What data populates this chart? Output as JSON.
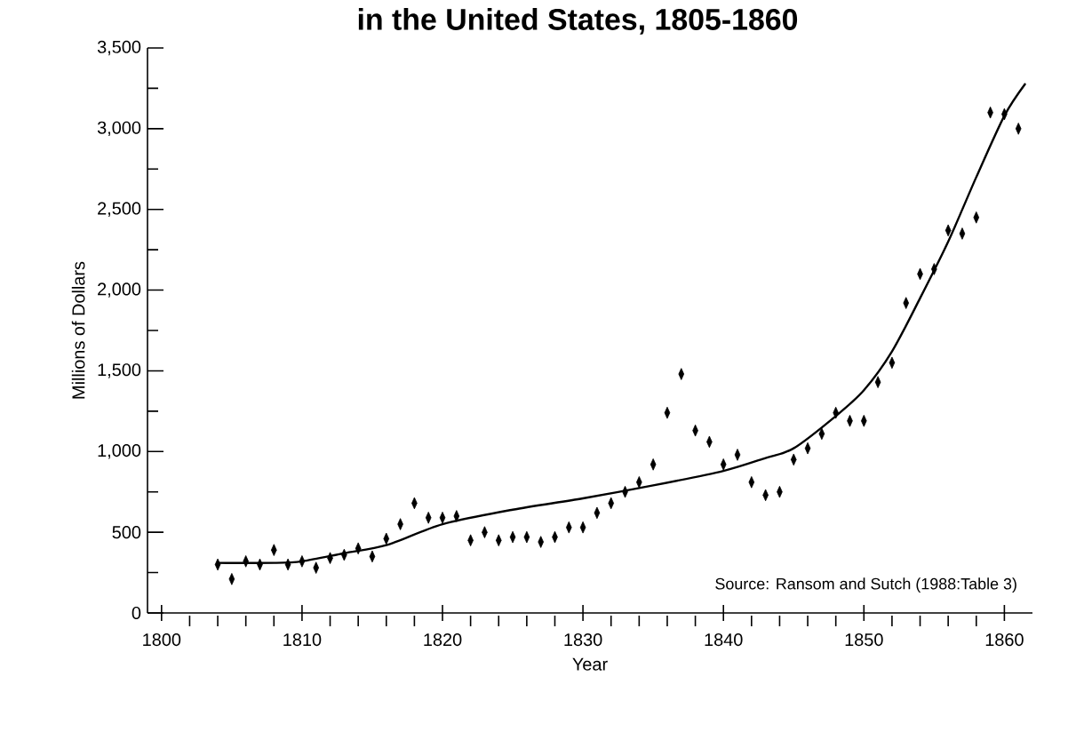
{
  "chart_data": {
    "type": "scatter",
    "title": "in the United States, 1805-1860",
    "xlabel": "Year",
    "ylabel": "Millions of Dollars",
    "annotations": [
      "Source: Ransom and Sutch (1988:Table 3)"
    ],
    "series": [
      {
        "type": "scatter",
        "color": "#000000",
        "marker": "diamond",
        "x": [
          1804,
          1805,
          1806,
          1807,
          1808,
          1809,
          1810,
          1811,
          1812,
          1813,
          1814,
          1815,
          1816,
          1817,
          1818,
          1819,
          1820,
          1821,
          1822,
          1823,
          1824,
          1825,
          1826,
          1827,
          1828,
          1829,
          1830,
          1831,
          1832,
          1833,
          1834,
          1835,
          1836,
          1837,
          1838,
          1839,
          1840,
          1841,
          1842,
          1843,
          1844,
          1845,
          1846,
          1847,
          1848,
          1849,
          1850,
          1851,
          1852,
          1853,
          1854,
          1855,
          1856,
          1857,
          1858,
          1859,
          1860,
          1861
        ],
        "values": [
          300,
          210,
          320,
          300,
          390,
          300,
          320,
          280,
          340,
          360,
          400,
          350,
          460,
          550,
          680,
          590,
          590,
          600,
          450,
          500,
          450,
          470,
          470,
          440,
          470,
          530,
          530,
          620,
          680,
          750,
          810,
          920,
          1240,
          1480,
          1130,
          1060,
          920,
          980,
          810,
          730,
          750,
          950,
          1020,
          1110,
          1240,
          1190,
          1190,
          1430,
          1550,
          1920,
          2100,
          2130,
          2370,
          2350,
          2450,
          3100,
          3090,
          3000
        ]
      },
      {
        "type": "line",
        "color": "#000000",
        "x": [
          1804,
          1808,
          1810,
          1813,
          1816,
          1820,
          1825,
          1830,
          1835,
          1840,
          1843,
          1845,
          1848,
          1850,
          1852,
          1854,
          1856,
          1858,
          1860,
          1861.5
        ],
        "values": [
          310,
          310,
          320,
          370,
          420,
          550,
          640,
          710,
          790,
          880,
          960,
          1020,
          1220,
          1380,
          1620,
          1950,
          2300,
          2700,
          3080,
          3280
        ]
      }
    ],
    "xlim": [
      1799,
      1862
    ],
    "ylim": [
      0,
      3500
    ],
    "xticks": [
      1800,
      {
        "value": 1802,
        "label": null
      },
      {
        "value": 1804,
        "label": null
      },
      {
        "value": 1806,
        "label": null
      },
      {
        "value": 1808,
        "label": null
      },
      1810,
      {
        "value": 1812,
        "label": null
      },
      {
        "value": 1814,
        "label": null
      },
      {
        "value": 1816,
        "label": null
      },
      {
        "value": 1818,
        "label": null
      },
      1820,
      {
        "value": 1822,
        "label": null
      },
      {
        "value": 1824,
        "label": null
      },
      {
        "value": 1826,
        "label": null
      },
      {
        "value": 1828,
        "label": null
      },
      1830,
      {
        "value": 1832,
        "label": null
      },
      {
        "value": 1834,
        "label": null
      },
      {
        "value": 1836,
        "label": null
      },
      {
        "value": 1838,
        "label": null
      },
      1840,
      {
        "value": 1842,
        "label": null
      },
      {
        "value": 1844,
        "label": null
      },
      {
        "value": 1846,
        "label": null
      },
      {
        "value": 1848,
        "label": null
      },
      1850,
      {
        "value": 1852,
        "label": null
      },
      {
        "value": 1854,
        "label": null
      },
      {
        "value": 1856,
        "label": null
      },
      {
        "value": 1858,
        "label": null
      },
      1860
    ],
    "yticks": [
      0,
      {
        "value": 250,
        "label": null
      },
      500,
      {
        "value": 750,
        "label": null
      },
      {
        "value": 1000,
        "label": "1,000"
      },
      {
        "value": 1250,
        "label": null
      },
      {
        "value": 1500,
        "label": "1,500"
      },
      {
        "value": 1750,
        "label": null
      },
      {
        "value": 2000,
        "label": "2,000"
      },
      {
        "value": 2250,
        "label": null
      },
      {
        "value": 2500,
        "label": "2,500"
      },
      {
        "value": 2750,
        "label": null
      },
      {
        "value": 3000,
        "label": "3,000"
      },
      {
        "value": 3250,
        "label": null
      },
      {
        "value": 3500,
        "label": "3,500"
      }
    ]
  }
}
